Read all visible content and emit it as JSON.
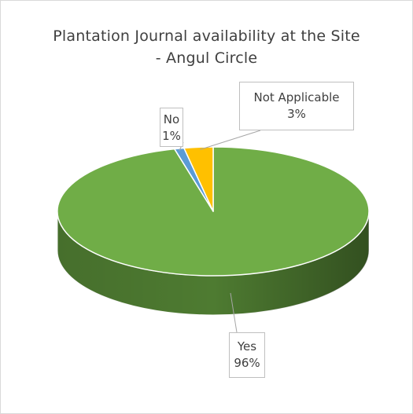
{
  "chart_data": {
    "type": "pie",
    "title_lines": [
      "Plantation Journal availability at the Site",
      "- Angul Circle"
    ],
    "slices": [
      {
        "label": "Yes",
        "value": 96,
        "value_text": "96%",
        "color": "#70ad47",
        "side_color": "#4e7b31"
      },
      {
        "label": "No",
        "value": 1,
        "value_text": "1%",
        "color": "#5b9bd5",
        "side_color": "#3f72a3"
      },
      {
        "label": "Not Applicable",
        "value": 3,
        "value_text": "3%",
        "color": "#ffc000",
        "side_color": "#c79500"
      }
    ],
    "legend": "none",
    "style": "3d"
  }
}
